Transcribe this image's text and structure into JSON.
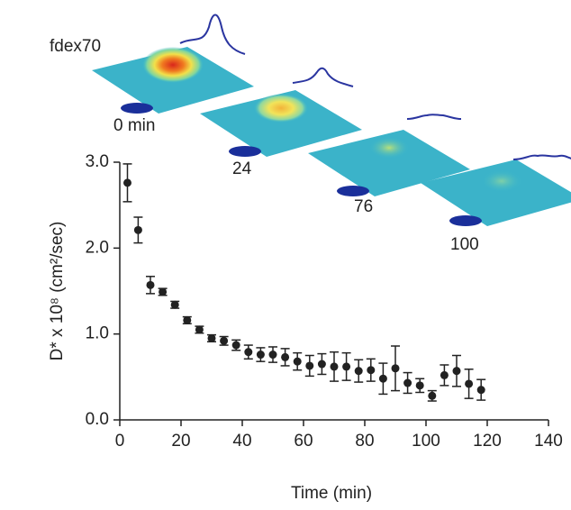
{
  "chart_data": {
    "type": "errorbar",
    "xlabel": "Time (min)",
    "ylabel": "D* x 10⁸ (cm²/sec)",
    "annotations": [
      "fdex70",
      "0 min",
      "24",
      "76",
      "100"
    ],
    "color": "#222222",
    "x": [
      2.5,
      6,
      10,
      14,
      18,
      22,
      26,
      30,
      34,
      38,
      42,
      46,
      50,
      54,
      58,
      62,
      66,
      70,
      74,
      78,
      82,
      86,
      90,
      94,
      98,
      102,
      106,
      110,
      114,
      118
    ],
    "values": [
      2.76,
      2.21,
      1.57,
      1.49,
      1.34,
      1.16,
      1.05,
      0.95,
      0.92,
      0.87,
      0.79,
      0.76,
      0.76,
      0.73,
      0.68,
      0.63,
      0.65,
      0.62,
      0.62,
      0.57,
      0.58,
      0.48,
      0.6,
      0.43,
      0.4,
      0.28,
      0.52,
      0.57,
      0.42,
      0.35
    ],
    "errors": [
      0.22,
      0.15,
      0.1,
      0.04,
      0.04,
      0.04,
      0.04,
      0.04,
      0.05,
      0.06,
      0.08,
      0.08,
      0.09,
      0.1,
      0.1,
      0.12,
      0.12,
      0.17,
      0.16,
      0.13,
      0.13,
      0.18,
      0.26,
      0.12,
      0.08,
      0.06,
      0.12,
      0.18,
      0.17,
      0.12
    ],
    "xlim": [
      0,
      140
    ],
    "xticks": [
      0,
      20,
      40,
      60,
      80,
      100,
      120,
      140
    ],
    "ylim": [
      0,
      3
    ],
    "yticks": [
      {
        "value": 0,
        "label": "0.0"
      },
      {
        "value": 1,
        "label": "1.0"
      },
      {
        "value": 2,
        "label": "2.0"
      },
      {
        "value": 3,
        "label": "3.0"
      }
    ]
  }
}
